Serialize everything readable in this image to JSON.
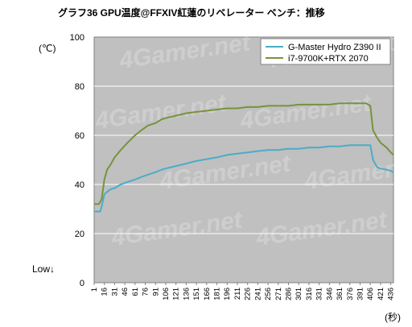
{
  "chart_data": {
    "type": "line",
    "title": "グラフ36 GPU温度@FFXIV紅蓮のリベレーター ベンチ：推移",
    "ylabel": "(℃)",
    "xlabel": "(秒)",
    "low_label": "Low↓",
    "ylim": [
      0,
      100
    ],
    "yticks": [
      0,
      20,
      40,
      60,
      80,
      100
    ],
    "xlim": [
      1,
      440
    ],
    "xticks": [
      1,
      16,
      31,
      46,
      61,
      76,
      91,
      106,
      121,
      136,
      151,
      166,
      181,
      196,
      211,
      226,
      241,
      256,
      271,
      286,
      301,
      316,
      331,
      346,
      361,
      376,
      391,
      406,
      421,
      436
    ],
    "grid": true,
    "legend_position": "top-right",
    "watermark": "4Gamer.net",
    "series": [
      {
        "name": "G-Master Hydro Z390 II",
        "color": "#4bacc6",
        "x": [
          1,
          10,
          12,
          16,
          20,
          25,
          31,
          40,
          50,
          61,
          70,
          80,
          91,
          100,
          106,
          121,
          136,
          150,
          160,
          170,
          181,
          196,
          210,
          226,
          240,
          256,
          271,
          285,
          300,
          316,
          330,
          346,
          361,
          376,
          390,
          400,
          406,
          410,
          416,
          421,
          430,
          436,
          440
        ],
        "y": [
          29,
          29,
          31,
          36,
          37,
          38,
          38.5,
          40,
          41,
          42,
          43,
          44,
          45,
          46,
          46.5,
          47.5,
          48.5,
          49.5,
          50,
          50.5,
          51,
          52,
          52.5,
          53,
          53.5,
          54,
          54,
          54.5,
          54.5,
          55,
          55,
          55.5,
          55.5,
          56,
          56,
          56,
          56,
          50,
          47,
          46.5,
          46,
          45.5,
          45
        ]
      },
      {
        "name": "i7-9700K+RTX 2070",
        "color": "#77933c",
        "x": [
          1,
          8,
          12,
          16,
          20,
          25,
          31,
          40,
          50,
          61,
          70,
          80,
          91,
          100,
          106,
          121,
          136,
          150,
          166,
          181,
          196,
          211,
          226,
          241,
          256,
          271,
          286,
          301,
          316,
          331,
          346,
          361,
          376,
          391,
          400,
          406,
          410,
          416,
          421,
          430,
          436,
          440
        ],
        "y": [
          32,
          32,
          34,
          42,
          46,
          48,
          51,
          54,
          57,
          60,
          62,
          64,
          65,
          66.5,
          67,
          68,
          69,
          69.5,
          70,
          70.5,
          71,
          71,
          71.5,
          71.5,
          72,
          72,
          72,
          72.5,
          72.5,
          72.5,
          72.5,
          73,
          73,
          73,
          73,
          72,
          62,
          59,
          57,
          55,
          53,
          52
        ]
      }
    ]
  }
}
